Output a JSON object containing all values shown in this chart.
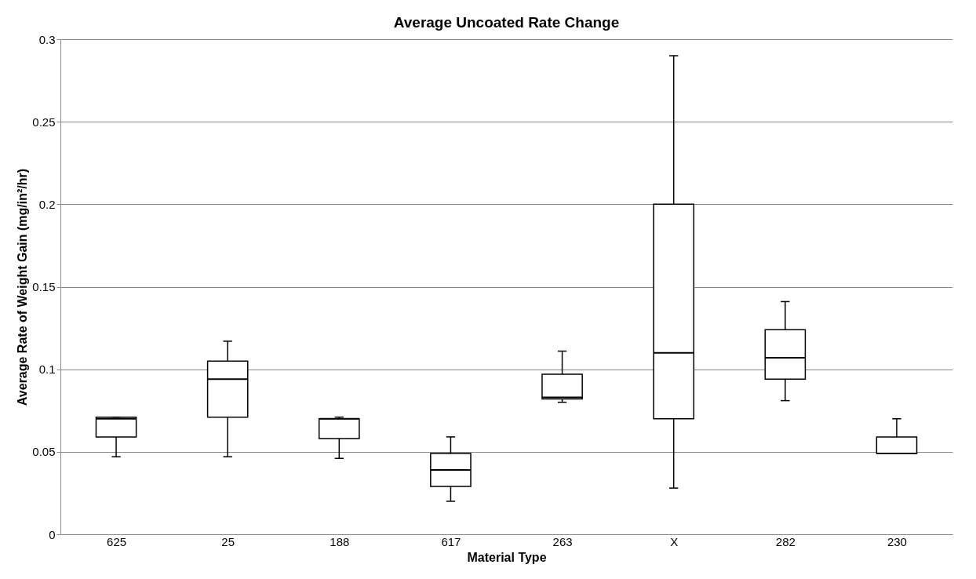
{
  "chart_data": {
    "type": "box",
    "title": "Average Uncoated Rate Change",
    "xlabel": "Material Type",
    "ylabel": "Average Rate of Weight Gain (mg/in²/hr)",
    "categories": [
      "625",
      "25",
      "188",
      "617",
      "263",
      "X",
      "282",
      "230"
    ],
    "boxes": [
      {
        "low": 0.047,
        "q1": 0.059,
        "median": 0.07,
        "q3": 0.071,
        "high": 0.071
      },
      {
        "low": 0.047,
        "q1": 0.071,
        "median": 0.094,
        "q3": 0.105,
        "high": 0.117
      },
      {
        "low": 0.046,
        "q1": 0.058,
        "median": 0.07,
        "q3": 0.07,
        "high": 0.071
      },
      {
        "low": 0.02,
        "q1": 0.029,
        "median": 0.039,
        "q3": 0.049,
        "high": 0.059
      },
      {
        "low": 0.08,
        "q1": 0.082,
        "median": 0.083,
        "q3": 0.097,
        "high": 0.111
      },
      {
        "low": 0.028,
        "q1": 0.07,
        "median": 0.11,
        "q3": 0.2,
        "high": 0.29
      },
      {
        "low": 0.081,
        "q1": 0.094,
        "median": 0.107,
        "q3": 0.124,
        "high": 0.141
      },
      {
        "low": 0.049,
        "q1": 0.049,
        "median": 0.049,
        "q3": 0.059,
        "high": 0.07
      }
    ],
    "color": "#000000",
    "ylim": [
      0,
      0.3
    ],
    "yticks": [
      0,
      0.05,
      0.1,
      0.15,
      0.2,
      0.25,
      0.3
    ],
    "grid": "y"
  }
}
